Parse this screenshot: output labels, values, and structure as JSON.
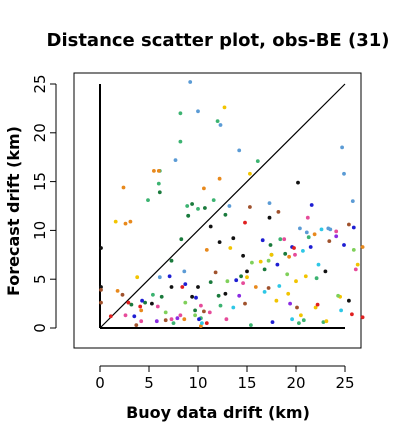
{
  "chart_data": {
    "type": "scatter",
    "title": "Distance scatter plot, obs-BE (31)",
    "xlabel": "Buoy data drift (km)",
    "ylabel": "Forecast drift (km)",
    "xlim": [
      -2.5,
      26.5
    ],
    "ylim": [
      -2,
      26
    ],
    "xticks": [
      "0",
      "5",
      "10",
      "15",
      "20",
      "25"
    ],
    "yticks": [
      "0",
      "5",
      "10",
      "15",
      "20",
      "25"
    ],
    "grid": false,
    "legend": "none",
    "reference_lines": [
      {
        "name": "diagonal",
        "x": [
          0,
          25
        ],
        "y": [
          0,
          25
        ],
        "color": "#000000"
      },
      {
        "name": "vertical",
        "x": [
          0,
          0
        ],
        "y": [
          0,
          25
        ],
        "color": "#000000"
      },
      {
        "name": "horizontal",
        "x": [
          0,
          25
        ],
        "y": [
          0,
          0
        ],
        "color": "#000000"
      }
    ],
    "series": [
      {
        "color": "#5b9bd5",
        "x": [
          9.2,
          10,
          12.3,
          14.2,
          7.7,
          24.7,
          25.8,
          23.5,
          24.9,
          20.4,
          17.3,
          23.3,
          13.2,
          21.1,
          8.6,
          6.1
        ],
        "y": [
          25.2,
          22.2,
          20.8,
          18.2,
          17.2,
          18.5,
          13,
          10.1,
          15.8,
          10.2,
          12.8,
          10.2,
          12.5,
          9.8,
          5.8,
          5.2
        ]
      },
      {
        "color": "#3cb371",
        "x": [
          8.2,
          8.2,
          12,
          6.1,
          6,
          4.9,
          8.9,
          9,
          10,
          11.6,
          16.1,
          18.4,
          21.3,
          17.5,
          22.1,
          20.3,
          7.5,
          10.3,
          15.4,
          20.8,
          22.8,
          5.4,
          12.3
        ],
        "y": [
          22,
          19.1,
          21.2,
          16.1,
          14.8,
          13.1,
          12.5,
          11.5,
          12.2,
          13.1,
          17.1,
          9.1,
          9.3,
          7.5,
          5.1,
          0.5,
          0.5,
          1,
          0.3,
          0.8,
          0.6,
          3.4,
          2.3
        ]
      },
      {
        "color": "#f2c400",
        "x": [
          12.7,
          15.3,
          17.5,
          20,
          18,
          20.5,
          22,
          23.1,
          24.5,
          15,
          19.2,
          21,
          16.4,
          13.3,
          3.8,
          1.6,
          26.3
        ],
        "y": [
          22.6,
          15.8,
          7.5,
          4.8,
          2.8,
          1.3,
          2.1,
          0.7,
          3.2,
          5.2,
          3.5,
          5.3,
          6.8,
          8.2,
          5.2,
          10.9,
          6.5
        ]
      },
      {
        "color": "#e8891c",
        "x": [
          5.5,
          6,
          2.4,
          2.6,
          10.6,
          12.2,
          3.1,
          10.9,
          19.3,
          21.9,
          26.8,
          15.9,
          1.8,
          4.2,
          8.6,
          10.3
        ],
        "y": [
          16.1,
          16.1,
          14.4,
          10.7,
          14.3,
          15.3,
          10.9,
          8,
          7.3,
          9.6,
          8.3,
          4.2,
          3.8,
          1.8,
          0.9,
          0.2
        ]
      },
      {
        "color": "#1a7a3c",
        "x": [
          6.1,
          9.4,
          10.7,
          9,
          8.3,
          7.3,
          12.8,
          17.4,
          18.9,
          16.8,
          14.4,
          11.3,
          6.3,
          4.6,
          3.2,
          9.7,
          12.1
        ],
        "y": [
          13.9,
          12.7,
          12.3,
          11.5,
          9.1,
          6.9,
          11.6,
          8.5,
          7.6,
          6,
          5.3,
          4.7,
          3.2,
          2.6,
          2.4,
          1.8,
          3.3
        ]
      },
      {
        "color": "#111111",
        "x": [
          11.3,
          20.2,
          13.6,
          17.3,
          15,
          23,
          12.2,
          14.6,
          10,
          7.3,
          5.3,
          9.4,
          12.8,
          25.4,
          0.1,
          0.1
        ],
        "y": [
          10.4,
          14.9,
          9.2,
          11.3,
          5.8,
          5.8,
          8.8,
          7.4,
          4.2,
          4.2,
          2.5,
          3.2,
          3.5,
          2.8,
          4.2,
          8.2
        ]
      },
      {
        "color": "#1e1ed2",
        "x": [
          16.6,
          18.1,
          19.6,
          21.5,
          21.6,
          24.9,
          25.9,
          8.7,
          9.8,
          13.9,
          7.1,
          4.3,
          3.5,
          10.1,
          17.6
        ],
        "y": [
          9,
          6.5,
          8.3,
          8.3,
          12.6,
          8.5,
          10.3,
          4.5,
          3.1,
          4.9,
          5.3,
          2.8,
          1.2,
          0.9,
          0.6
        ]
      },
      {
        "color": "#e64b9a",
        "x": [
          18.8,
          24.1,
          21.2,
          14.6,
          10.3,
          11.2,
          7.3,
          8.2,
          5.9,
          2.6,
          4.2,
          12.9,
          19.9,
          26.1
        ],
        "y": [
          9.1,
          9.9,
          11.3,
          4.6,
          2.3,
          1.6,
          0.9,
          1.3,
          2.2,
          1.3,
          0.7,
          0.9,
          7.5,
          6
        ]
      },
      {
        "color": "#a0522d",
        "x": [
          15.3,
          18.2,
          23.4,
          25.4,
          17.2,
          14.8,
          10.6,
          6.7,
          3.7,
          11.8,
          2.3,
          0.1,
          0.1,
          20.1
        ],
        "y": [
          12.4,
          11.9,
          8.9,
          10.6,
          4.1,
          2.5,
          1.7,
          0.8,
          0.3,
          5.7,
          3.4,
          3.9,
          2.6,
          2.1
        ]
      },
      {
        "color": "#2ec7e6",
        "x": [
          20.7,
          22.3,
          24.6,
          16.8,
          13.6,
          18.3,
          22.6,
          19.6,
          10.4
        ],
        "y": [
          7.9,
          6.5,
          1.8,
          3.7,
          2.1,
          4.3,
          10.1,
          0.9,
          0.5
        ]
      },
      {
        "color": "#e02020",
        "x": [
          14.8,
          19.8,
          22.2,
          25.7,
          26.8,
          10.9,
          8.4,
          4.1,
          2.9,
          1.1
        ],
        "y": [
          10.8,
          8.2,
          2.4,
          1.4,
          1.1,
          0.5,
          4.2,
          2.2,
          2.6,
          1.2
        ]
      },
      {
        "color": "#7fd05a",
        "x": [
          17.2,
          19.1,
          25.9,
          24.3,
          15.5,
          13,
          6.7,
          8.7,
          9.7
        ],
        "y": [
          6.9,
          5.5,
          8,
          3.3,
          6.7,
          4.8,
          1.6,
          2.6,
          1.3
        ]
      },
      {
        "color": "#8a2be2",
        "x": [
          19.4,
          24.1,
          14.2,
          7.9,
          5.8
        ],
        "y": [
          2.5,
          9.4,
          3.3,
          1,
          0.7
        ]
      }
    ]
  }
}
